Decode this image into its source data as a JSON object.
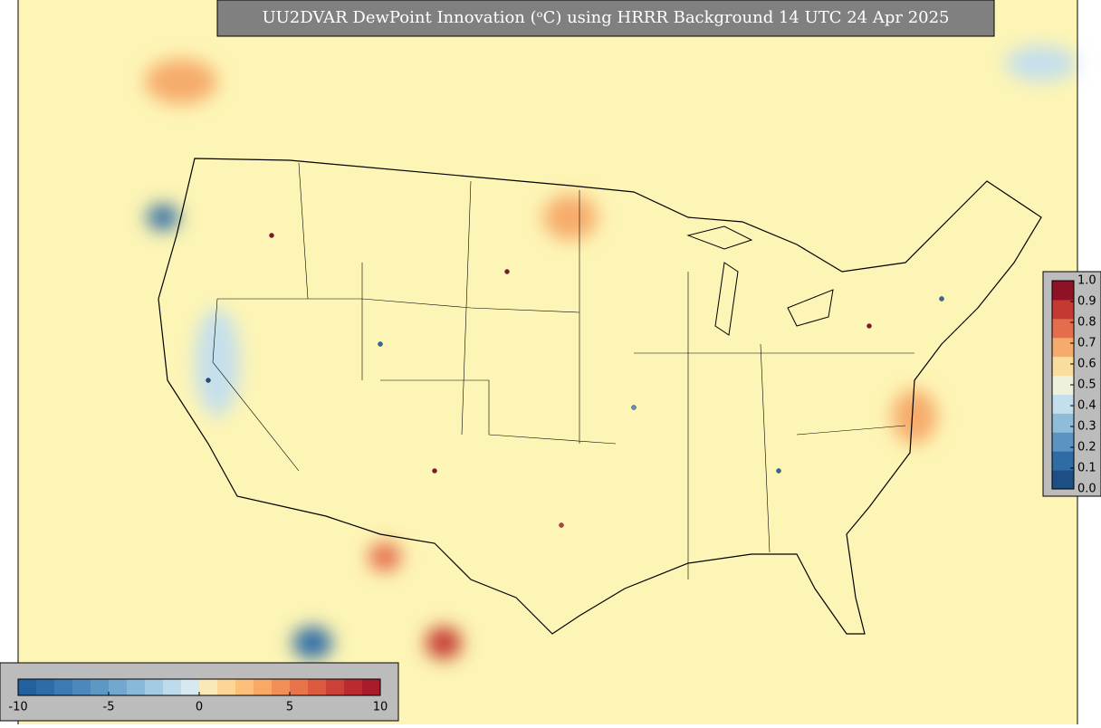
{
  "title": "UU2DVAR DewPoint Innovation (ᵒC) using HRRR Background 14 UTC 24 Apr 2025",
  "colorbar_bottom": {
    "lim": [
      -10,
      10
    ],
    "ticks": [
      -10,
      -5,
      0,
      5,
      10
    ],
    "colors": [
      "#23609e",
      "#2e6ca8",
      "#3b7ab2",
      "#4b88bb",
      "#5d97c4",
      "#72a8d0",
      "#89b9da",
      "#a3cbe3",
      "#bddbeb",
      "#d6e9f1",
      "#fbe8b8",
      "#fdd695",
      "#fcc07a",
      "#f9a866",
      "#f28e57",
      "#e8744a",
      "#db5a40",
      "#cb4137",
      "#ba2a2f",
      "#a91a2a"
    ]
  },
  "colorbar_right": {
    "lim": [
      0,
      1
    ],
    "ticks": [
      {
        "value": 0,
        "label": "0.0"
      },
      0.1,
      0.2,
      0.3,
      0.4,
      0.5,
      0.6,
      0.7,
      0.8,
      0.9,
      {
        "value": 1,
        "label": "1.0"
      }
    ],
    "colors": [
      "#1d4f85",
      "#2f6ca6",
      "#5b93c2",
      "#8fbcd9",
      "#c4dfec",
      "#eef1dc",
      "#fbdc9f",
      "#f6ab6c",
      "#e46d4c",
      "#c43a33",
      "#8e1126"
    ]
  }
}
